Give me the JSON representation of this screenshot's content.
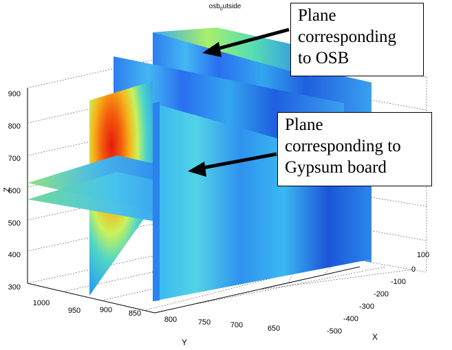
{
  "chart_data": {
    "type": "volumetric-slice",
    "title_main": "osb",
    "title_sub": "0",
    "title_rest": "utside",
    "xlabel": "X",
    "ylabel": "Y",
    "zlabel": "Z",
    "x_ticks": [
      100,
      0,
      -100,
      -200,
      -300,
      -400,
      -500
    ],
    "y_ticks": [
      1000,
      950,
      900,
      850,
      800,
      750,
      700,
      650
    ],
    "z_ticks": [
      300,
      400,
      500,
      600,
      700,
      800,
      900
    ],
    "xlim": [
      -500,
      100
    ],
    "ylim": [
      620,
      1000
    ],
    "zlim": [
      300,
      920
    ],
    "colormap": "jet",
    "grid": true
  },
  "callouts": {
    "osb": {
      "lines": [
        "Plane",
        "corresponding",
        "to OSB"
      ]
    },
    "gypsum": {
      "lines": [
        "Plane",
        "corresponding to",
        "Gypsum board"
      ]
    }
  }
}
